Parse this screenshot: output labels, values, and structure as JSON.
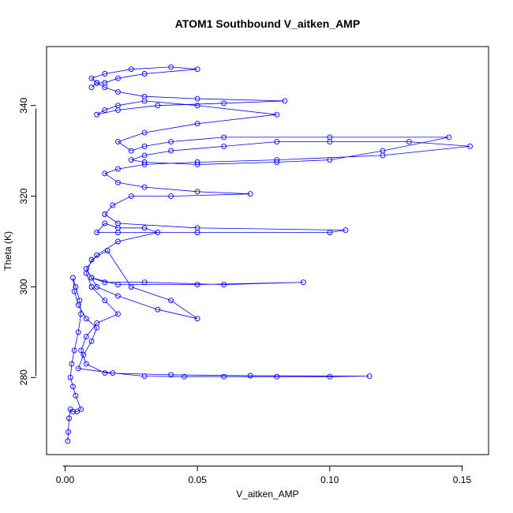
{
  "chart_data": {
    "type": "scatter",
    "title": "ATOM1 Southbound V_aitken_AMP",
    "xlabel": "V_aitken_AMP",
    "ylabel": "Theta (K)",
    "xlim": [
      -0.007,
      0.16
    ],
    "ylim": [
      263,
      353
    ],
    "xticks": [
      0.0,
      0.05,
      0.1,
      0.15
    ],
    "xtick_labels": [
      "0.00",
      "0.05",
      "0.10",
      "0.15"
    ],
    "yticks": [
      280,
      300,
      320,
      340
    ],
    "ytick_labels": [
      "280",
      "300",
      "320",
      "340"
    ],
    "grid": false,
    "marker": "open-circle",
    "line_style": "connected",
    "color": "#0000ff",
    "series": [
      {
        "x": [
          0.001,
          0.0012,
          0.0015,
          0.002,
          0.003,
          0.0045,
          0.006,
          0.004,
          0.003,
          0.002,
          0.0025,
          0.0035,
          0.005,
          0.006,
          0.0055,
          0.004,
          0.003,
          0.0035,
          0.005,
          0.008,
          0.012,
          0.01,
          0.007,
          0.005,
          0.018,
          0.03,
          0.045,
          0.06,
          0.08,
          0.1,
          0.115,
          0.07,
          0.04,
          0.015,
          0.008,
          0.006,
          0.008,
          0.012,
          0.02,
          0.015,
          0.01,
          0.008,
          0.01,
          0.016,
          0.025,
          0.04,
          0.05,
          0.035,
          0.02,
          0.012,
          0.01,
          0.015,
          0.03,
          0.06,
          0.09,
          0.05,
          0.02,
          0.01,
          0.008,
          0.012,
          0.02,
          0.035,
          0.03,
          0.02,
          0.015,
          0.012,
          0.02,
          0.05,
          0.1,
          0.106,
          0.05,
          0.02,
          0.015,
          0.018,
          0.025,
          0.04,
          0.07,
          0.05,
          0.03,
          0.02,
          0.015,
          0.02,
          0.03,
          0.05,
          0.08,
          0.12,
          0.153,
          0.13,
          0.1,
          0.08,
          0.06,
          0.04,
          0.03,
          0.025,
          0.03,
          0.05,
          0.08,
          0.1,
          0.12,
          0.145,
          0.1,
          0.06,
          0.04,
          0.03,
          0.025,
          0.02,
          0.03,
          0.05,
          0.08,
          0.05,
          0.03,
          0.02,
          0.015,
          0.012,
          0.02,
          0.035,
          0.06,
          0.083,
          0.05,
          0.03,
          0.02,
          0.015,
          0.012,
          0.01,
          0.015,
          0.025,
          0.04,
          0.05,
          0.03,
          0.02,
          0.015,
          0.012,
          0.01
        ],
        "y": [
          266,
          268,
          271,
          273,
          272.5,
          272.5,
          273,
          276,
          278,
          280,
          283,
          286,
          290,
          294,
          297,
          300,
          302,
          299,
          296,
          293,
          291,
          288,
          285,
          282,
          281,
          280.3,
          280.2,
          280.2,
          280.2,
          280.2,
          280.3,
          280.4,
          280.6,
          281,
          283,
          286,
          289,
          292,
          294,
          297,
          300,
          303,
          306,
          308,
          300,
          297,
          293,
          295,
          298,
          300,
          302,
          301,
          301,
          300.5,
          301,
          300.5,
          300.5,
          302,
          304,
          307,
          310,
          312,
          313,
          313,
          314,
          312,
          312,
          312,
          312,
          312.5,
          313,
          314,
          316,
          318,
          320,
          320,
          320.5,
          321,
          322,
          323,
          325,
          326,
          327,
          327.5,
          328,
          329,
          331,
          332,
          332,
          332,
          331,
          330,
          329,
          328,
          327.5,
          327,
          327.5,
          328,
          330,
          333,
          333,
          333,
          332,
          331,
          330,
          332,
          334,
          336,
          338,
          340,
          341,
          340,
          339,
          338,
          339,
          340,
          340.5,
          341,
          341.5,
          342,
          343,
          344,
          345,
          346,
          347,
          348,
          348.5,
          348,
          347,
          346,
          345,
          345,
          344
        ]
      }
    ]
  }
}
